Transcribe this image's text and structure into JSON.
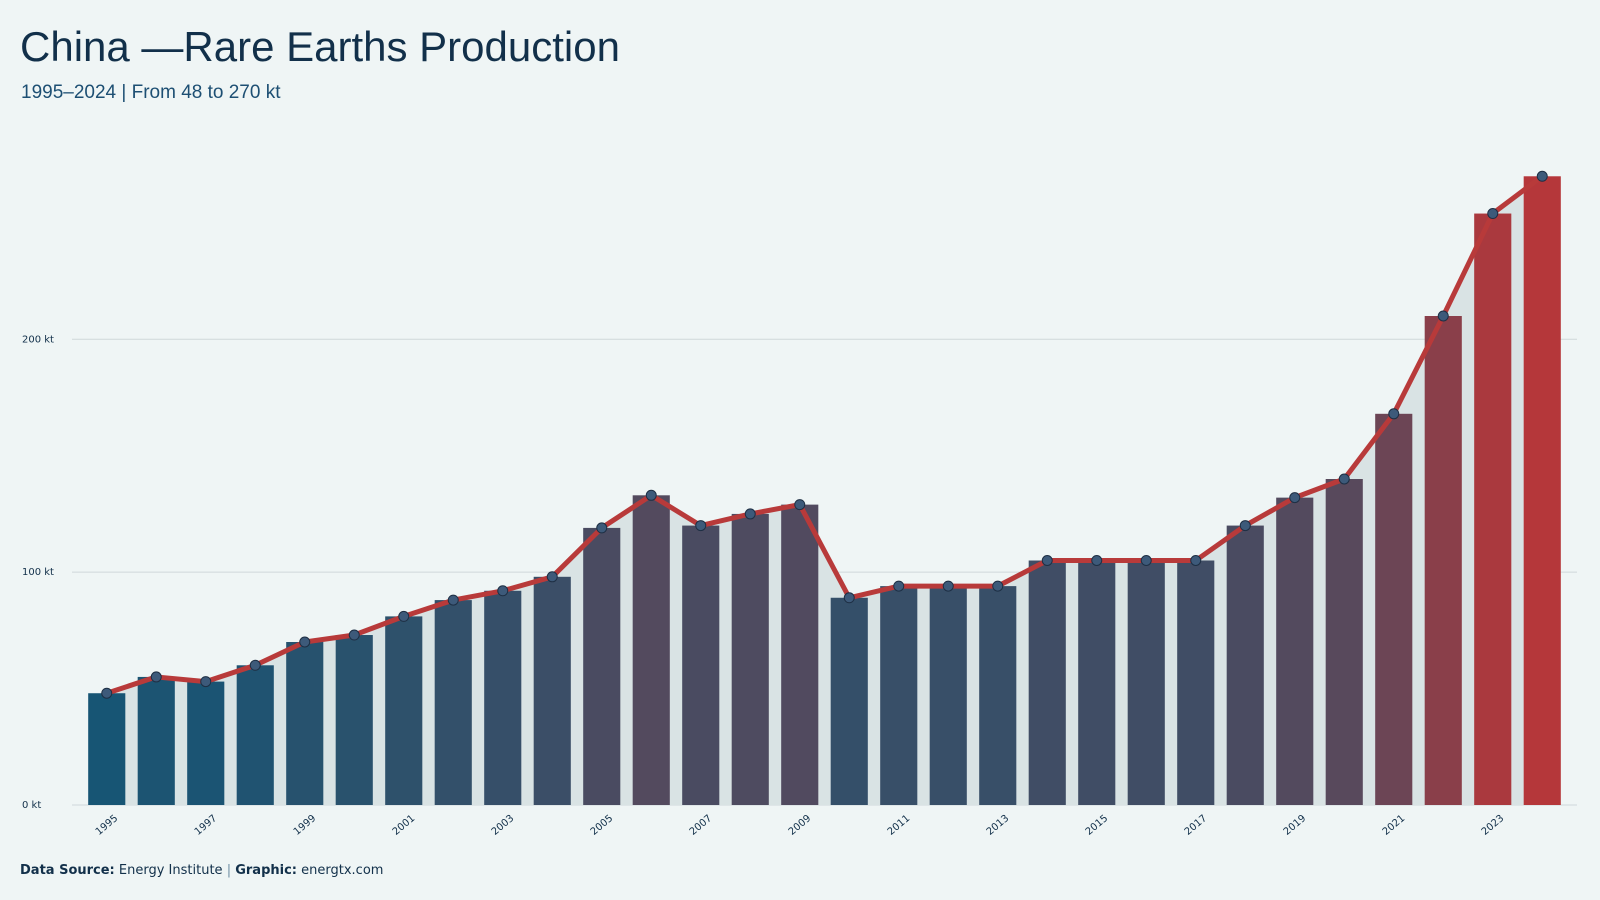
{
  "chart_data": {
    "type": "bar",
    "title": "China —Rare Earths Production",
    "subtitle": "1995–2024 | From 48 to 270 kt",
    "categories": [
      "1995",
      null,
      "1997",
      null,
      "1999",
      null,
      "2001",
      null,
      "2003",
      null,
      "2005",
      null,
      "2007",
      null,
      "2009",
      null,
      "2011",
      null,
      "2013",
      null,
      "2015",
      null,
      "2017",
      null,
      "2019",
      null,
      "2021",
      null,
      "2023",
      null
    ],
    "values": [
      48,
      55,
      53,
      60,
      70,
      73,
      81,
      88,
      92,
      98,
      119,
      133,
      120,
      125,
      129,
      89,
      94,
      94,
      94,
      105,
      105,
      105,
      105,
      120,
      132,
      140,
      168,
      210,
      254,
      270
    ],
    "color_low": "#175574",
    "color_high": "#b5373a",
    "line_color": "#b83a3a",
    "marker_color": "#3d5a7a",
    "area_color": "#d9e3e4",
    "ylim": [
      0,
      280
    ],
    "yticks": [
      {
        "value": 0,
        "label": "0 kt"
      },
      {
        "value": 100,
        "label": "100 kt"
      },
      {
        "value": 200,
        "label": "200 kt"
      }
    ],
    "grid": true
  },
  "footer": {
    "source_label": "Data Source:",
    "source": "Energy Institute",
    "separator": "|",
    "graphic_label": "Graphic:",
    "graphic": "energtx.com"
  }
}
